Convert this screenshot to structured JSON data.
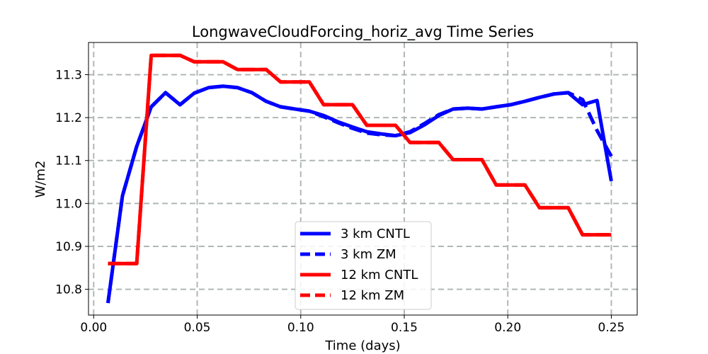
{
  "chart_data": {
    "type": "line",
    "title": "LongwaveCloudForcing_horiz_avg Time Series",
    "xlabel": "Time (days)",
    "ylabel": "W/m2",
    "xlim": [
      -0.0025,
      0.2625
    ],
    "ylim": [
      10.74,
      11.375
    ],
    "xticks": [
      0.0,
      0.05,
      0.1,
      0.15,
      0.2,
      0.25
    ],
    "xtick_labels": [
      "0.00",
      "0.05",
      "0.10",
      "0.15",
      "0.20",
      "0.25"
    ],
    "yticks": [
      10.8,
      10.9,
      11.0,
      11.1,
      11.2,
      11.3
    ],
    "ytick_labels": [
      "10.8",
      "10.9",
      "11.0",
      "11.1",
      "11.2",
      "11.3"
    ],
    "grid": true,
    "legend_position": "bottom-center",
    "series": [
      {
        "name": "3 km CNTL",
        "color": "#0000ff",
        "style": "solid",
        "x": [
          0.0069,
          0.0139,
          0.0208,
          0.0278,
          0.0347,
          0.0417,
          0.0486,
          0.0556,
          0.0625,
          0.0694,
          0.0764,
          0.0833,
          0.0903,
          0.0972,
          0.1042,
          0.1111,
          0.1181,
          0.125,
          0.1319,
          0.1389,
          0.1458,
          0.1528,
          0.1597,
          0.1667,
          0.1736,
          0.1806,
          0.1875,
          0.1944,
          0.2014,
          0.2083,
          0.2153,
          0.2222,
          0.2292,
          0.2361,
          0.2431,
          0.25
        ],
        "y": [
          10.768,
          11.018,
          11.133,
          11.225,
          11.258,
          11.23,
          11.257,
          11.27,
          11.273,
          11.27,
          11.258,
          11.238,
          11.225,
          11.22,
          11.215,
          11.205,
          11.19,
          11.178,
          11.167,
          11.162,
          11.158,
          11.165,
          11.183,
          11.205,
          11.22,
          11.222,
          11.22,
          11.225,
          11.23,
          11.238,
          11.247,
          11.255,
          11.258,
          11.23,
          11.24,
          11.052
        ]
      },
      {
        "name": "3 km ZM",
        "color": "#0000ff",
        "style": "dashed",
        "x": [
          0.0069,
          0.0139,
          0.0208,
          0.0278,
          0.0347,
          0.0417,
          0.0486,
          0.0556,
          0.0625,
          0.0694,
          0.0764,
          0.0833,
          0.0903,
          0.0972,
          0.1042,
          0.1111,
          0.1181,
          0.125,
          0.1319,
          0.1389,
          0.1458,
          0.1528,
          0.1597,
          0.1667,
          0.1736,
          0.1806,
          0.1875,
          0.1944,
          0.2014,
          0.2083,
          0.2153,
          0.2222,
          0.2292,
          0.2361,
          0.2431,
          0.25
        ],
        "y": [
          10.768,
          11.018,
          11.133,
          11.225,
          11.258,
          11.23,
          11.257,
          11.27,
          11.273,
          11.27,
          11.258,
          11.238,
          11.225,
          11.22,
          11.215,
          11.202,
          11.188,
          11.175,
          11.164,
          11.16,
          11.158,
          11.167,
          11.186,
          11.207,
          11.22,
          11.222,
          11.22,
          11.225,
          11.23,
          11.238,
          11.247,
          11.255,
          11.258,
          11.242,
          11.17,
          11.11
        ]
      },
      {
        "name": "12 km CNTL",
        "color": "#ff0000",
        "style": "solid",
        "x": [
          0.0069,
          0.0208,
          0.0278,
          0.0417,
          0.0486,
          0.0625,
          0.0694,
          0.0833,
          0.0903,
          0.1042,
          0.1111,
          0.125,
          0.1319,
          0.1458,
          0.1528,
          0.1667,
          0.1736,
          0.1875,
          0.1944,
          0.2083,
          0.2153,
          0.2292,
          0.2361,
          0.25
        ],
        "y": [
          10.86,
          10.86,
          11.345,
          11.345,
          11.33,
          11.33,
          11.312,
          11.312,
          11.283,
          11.283,
          11.23,
          11.23,
          11.182,
          11.182,
          11.142,
          11.142,
          11.102,
          11.102,
          11.043,
          11.043,
          10.99,
          10.99,
          10.927,
          10.927
        ]
      },
      {
        "name": "12 km ZM",
        "color": "#ff0000",
        "style": "dashed",
        "x": [
          0.0069,
          0.0208,
          0.0278,
          0.0417,
          0.0486,
          0.0625,
          0.0694,
          0.0833,
          0.0903,
          0.1042,
          0.1111,
          0.125,
          0.1319,
          0.1458,
          0.1528,
          0.1667,
          0.1736,
          0.1875,
          0.1944,
          0.2083,
          0.2153,
          0.2292,
          0.2361,
          0.25
        ],
        "y": [
          10.86,
          10.86,
          11.345,
          11.345,
          11.33,
          11.33,
          11.312,
          11.312,
          11.283,
          11.283,
          11.23,
          11.23,
          11.182,
          11.182,
          11.142,
          11.142,
          11.102,
          11.102,
          11.043,
          11.043,
          10.99,
          10.99,
          10.927,
          10.927
        ]
      }
    ]
  }
}
